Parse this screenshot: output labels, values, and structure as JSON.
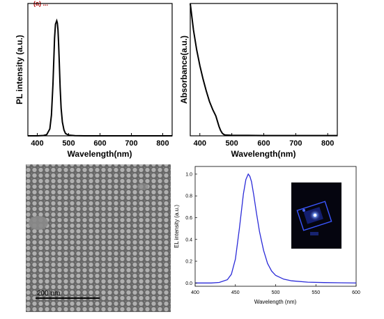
{
  "colors": {
    "pl_line": "#000000",
    "abs_line": "#000000",
    "el_line": "#2a2ad8",
    "sem_bg": "#6e6e6e",
    "sem_particle": "#bdbdbd",
    "inset_bg": "#05050f",
    "inset_glow": "#2f55ff"
  },
  "sem": {
    "scale_bar_label": "200 nm"
  },
  "inset": {
    "description_icon": "glowing-led-device-icon"
  },
  "chart_data": [
    {
      "type": "line",
      "title": "",
      "xlabel": "Wavelength(nm)",
      "ylabel": "PL intensity (a.u.)",
      "xlim": [
        370,
        830
      ],
      "ylim": [
        0,
        1.15
      ],
      "xticks": [
        400,
        500,
        600,
        700,
        800
      ],
      "yticks_shown": false,
      "grid": false,
      "series": [
        {
          "x": [
            370,
            400,
            420,
            430,
            440,
            445,
            450,
            455,
            458,
            462,
            464,
            466,
            468,
            470,
            473,
            476,
            480,
            485,
            490,
            500,
            520,
            550,
            600,
            700,
            800,
            830
          ],
          "values": [
            0.0,
            0.0,
            0.003,
            0.01,
            0.06,
            0.18,
            0.45,
            0.85,
            0.97,
            1.0,
            0.98,
            0.92,
            0.8,
            0.65,
            0.42,
            0.24,
            0.12,
            0.05,
            0.02,
            0.006,
            0.002,
            0.0,
            0.0,
            0.0,
            0.0,
            0.0
          ]
        }
      ]
    },
    {
      "type": "line",
      "title": "",
      "xlabel": "Wavelength(nm)",
      "ylabel": "Absorbance(a.u.)",
      "xlim": [
        370,
        830
      ],
      "ylim": [
        0,
        1.0
      ],
      "xticks": [
        400,
        500,
        600,
        700,
        800
      ],
      "yticks_shown": false,
      "grid": false,
      "series": [
        {
          "x": [
            370,
            380,
            390,
            400,
            410,
            420,
            430,
            440,
            450,
            455,
            460,
            465,
            470,
            475,
            480,
            500,
            550,
            600,
            700,
            800,
            830
          ],
          "values": [
            1.0,
            0.8,
            0.65,
            0.53,
            0.43,
            0.34,
            0.26,
            0.2,
            0.15,
            0.11,
            0.07,
            0.04,
            0.02,
            0.01,
            0.006,
            0.004,
            0.003,
            0.002,
            0.002,
            0.002,
            0.002
          ]
        }
      ]
    },
    {
      "type": "line",
      "title": "",
      "xlabel": "Wavelength (nm)",
      "ylabel": "EL intensity (a.u.)",
      "xlim": [
        400,
        600
      ],
      "ylim": [
        -0.03,
        1.07
      ],
      "xticks": [
        400,
        450,
        500,
        550,
        600
      ],
      "yticks": [
        0.0,
        0.2,
        0.4,
        0.6,
        0.8,
        1.0
      ],
      "grid": false,
      "series": [
        {
          "x": [
            400,
            420,
            430,
            440,
            445,
            450,
            455,
            460,
            463,
            466,
            468,
            470,
            473,
            476,
            480,
            485,
            490,
            495,
            500,
            510,
            520,
            540,
            560,
            580,
            600
          ],
          "values": [
            0.0,
            0.0,
            0.005,
            0.03,
            0.08,
            0.22,
            0.5,
            0.82,
            0.95,
            1.0,
            0.98,
            0.93,
            0.8,
            0.65,
            0.47,
            0.3,
            0.18,
            0.11,
            0.07,
            0.035,
            0.02,
            0.008,
            0.004,
            0.002,
            0.0
          ]
        }
      ]
    }
  ]
}
